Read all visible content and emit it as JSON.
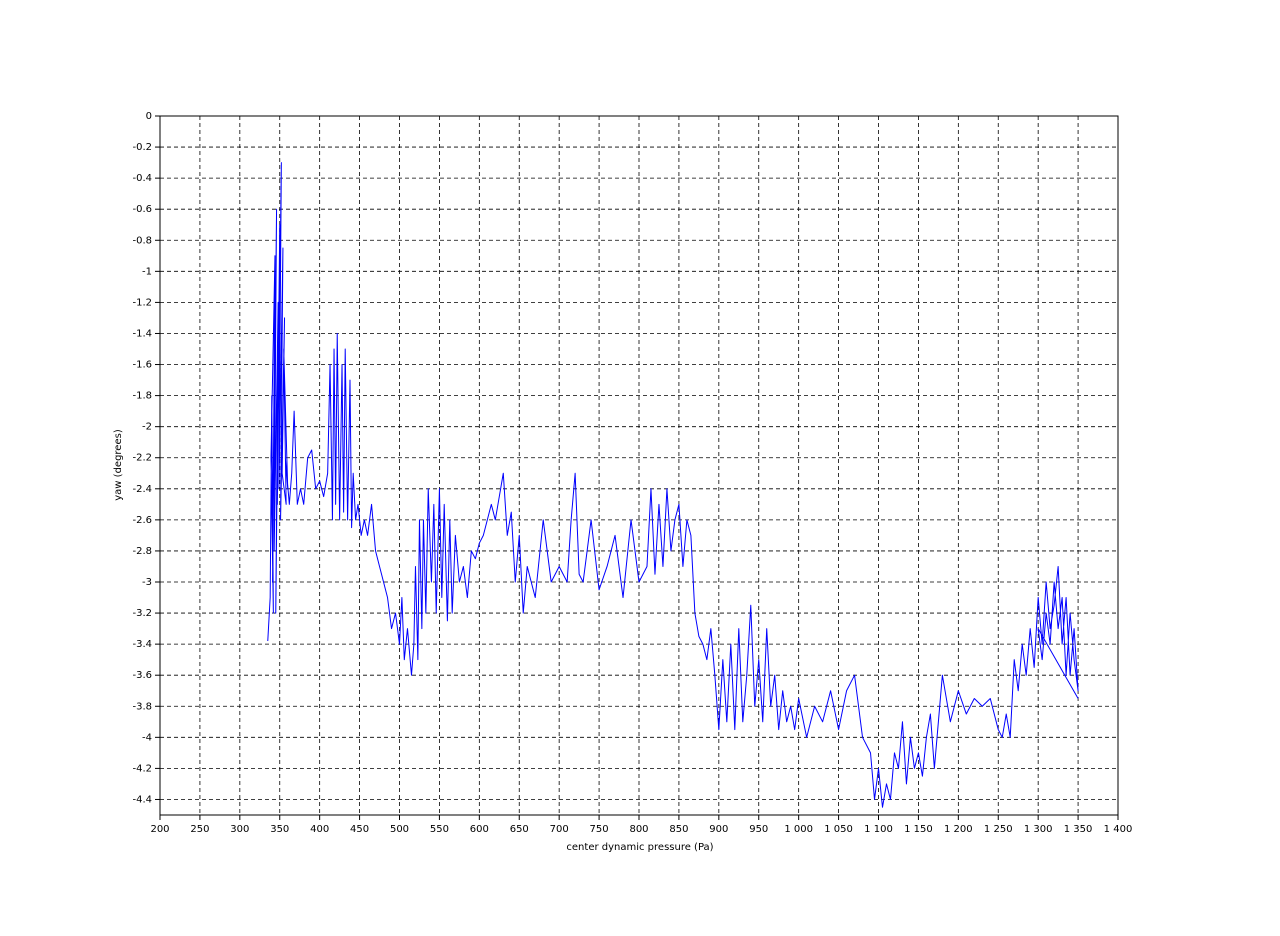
{
  "chart_data": {
    "type": "line",
    "xlabel": "center dynamic pressure (Pa)",
    "ylabel": "yaw (degrees)",
    "color": "#0000ff",
    "grid": true,
    "xlim": [
      200,
      1400
    ],
    "ylim": [
      -4.5,
      0
    ],
    "xticks": [
      200,
      250,
      300,
      350,
      400,
      450,
      500,
      550,
      600,
      650,
      700,
      750,
      800,
      850,
      900,
      950,
      {
        "value": 1000,
        "label": "1 000"
      },
      {
        "value": 1050,
        "label": "1 050"
      },
      {
        "value": 1100,
        "label": "1 100"
      },
      {
        "value": 1150,
        "label": "1 150"
      },
      {
        "value": 1200,
        "label": "1 200"
      },
      {
        "value": 1250,
        "label": "1 250"
      },
      {
        "value": 1300,
        "label": "1 300"
      },
      {
        "value": 1350,
        "label": "1 350"
      },
      {
        "value": 1400,
        "label": "1 400"
      }
    ],
    "yticks": [
      0,
      -0.2,
      -0.4,
      -0.6,
      -0.8,
      -1,
      -1.2,
      -1.4,
      -1.6,
      -1.8,
      -2,
      -2.2,
      -2.4,
      -2.6,
      -2.8,
      -3,
      -3.2,
      -3.4,
      -3.6,
      -3.8,
      -4,
      -4.2,
      -4.4
    ],
    "x": [
      335,
      338,
      340,
      342,
      339,
      344,
      341,
      346,
      343,
      348,
      345,
      350,
      347,
      352,
      349,
      354,
      351,
      356,
      353,
      358,
      355,
      360,
      357,
      362,
      365,
      368,
      372,
      376,
      380,
      385,
      390,
      395,
      400,
      405,
      410,
      413,
      416,
      418,
      420,
      422,
      425,
      428,
      430,
      432,
      435,
      438,
      440,
      442,
      445,
      448,
      452,
      456,
      460,
      465,
      470,
      475,
      480,
      485,
      490,
      495,
      500,
      503,
      506,
      510,
      515,
      518,
      520,
      523,
      525,
      528,
      530,
      533,
      536,
      540,
      543,
      546,
      550,
      553,
      556,
      560,
      563,
      566,
      570,
      575,
      580,
      585,
      590,
      595,
      600,
      605,
      610,
      615,
      620,
      625,
      630,
      635,
      640,
      645,
      650,
      655,
      660,
      670,
      680,
      690,
      700,
      710,
      715,
      720,
      725,
      730,
      740,
      750,
      760,
      770,
      780,
      790,
      800,
      810,
      815,
      820,
      825,
      830,
      835,
      840,
      845,
      850,
      855,
      860,
      865,
      870,
      875,
      880,
      885,
      890,
      895,
      900,
      905,
      910,
      915,
      920,
      925,
      930,
      935,
      940,
      945,
      950,
      955,
      960,
      965,
      970,
      975,
      980,
      985,
      990,
      995,
      1000,
      1010,
      1020,
      1030,
      1040,
      1050,
      1060,
      1070,
      1080,
      1090,
      1095,
      1100,
      1105,
      1110,
      1115,
      1120,
      1125,
      1130,
      1135,
      1140,
      1145,
      1150,
      1155,
      1160,
      1165,
      1170,
      1175,
      1180,
      1190,
      1200,
      1210,
      1220,
      1230,
      1240,
      1250,
      1255,
      1260,
      1265,
      1270,
      1275,
      1280,
      1285,
      1290,
      1295,
      1300,
      1305,
      1310,
      1315,
      1320,
      1325,
      1330,
      1335,
      1340,
      1345,
      1350,
      1345,
      1340,
      1335,
      1330,
      1325,
      1320,
      1315,
      1310,
      1305,
      1300,
      1350
    ],
    "values": [
      -3.38,
      -3.1,
      -1.8,
      -3.2,
      -2.2,
      -0.9,
      -3.0,
      -0.6,
      -2.8,
      -1.2,
      -3.2,
      -0.7,
      -2.5,
      -0.3,
      -2.4,
      -0.85,
      -2.6,
      -1.3,
      -2.3,
      -2.5,
      -1.5,
      -2.4,
      -2.2,
      -2.5,
      -2.3,
      -1.9,
      -2.5,
      -2.4,
      -2.5,
      -2.2,
      -2.15,
      -2.4,
      -2.35,
      -2.45,
      -2.3,
      -1.6,
      -2.6,
      -1.5,
      -2.5,
      -1.4,
      -2.6,
      -1.6,
      -2.55,
      -1.5,
      -2.6,
      -1.7,
      -2.65,
      -2.3,
      -2.6,
      -2.5,
      -2.7,
      -2.6,
      -2.7,
      -2.5,
      -2.8,
      -2.9,
      -3.0,
      -3.1,
      -3.3,
      -3.2,
      -3.4,
      -3.1,
      -3.5,
      -3.3,
      -3.6,
      -3.4,
      -2.9,
      -3.5,
      -2.6,
      -3.3,
      -2.6,
      -3.2,
      -2.4,
      -3.0,
      -2.5,
      -3.2,
      -2.4,
      -3.1,
      -2.5,
      -3.25,
      -2.6,
      -3.2,
      -2.7,
      -3.0,
      -2.9,
      -3.1,
      -2.8,
      -2.85,
      -2.75,
      -2.7,
      -2.6,
      -2.5,
      -2.6,
      -2.45,
      -2.3,
      -2.7,
      -2.55,
      -3.0,
      -2.7,
      -3.2,
      -2.9,
      -3.1,
      -2.6,
      -3.0,
      -2.9,
      -3.0,
      -2.6,
      -2.3,
      -2.95,
      -3.0,
      -2.6,
      -3.05,
      -2.9,
      -2.7,
      -3.1,
      -2.6,
      -3.0,
      -2.9,
      -2.4,
      -2.95,
      -2.5,
      -2.9,
      -2.4,
      -2.8,
      -2.6,
      -2.5,
      -2.9,
      -2.6,
      -2.7,
      -3.2,
      -3.35,
      -3.4,
      -3.5,
      -3.3,
      -3.6,
      -3.95,
      -3.5,
      -3.9,
      -3.4,
      -3.95,
      -3.3,
      -3.9,
      -3.6,
      -3.15,
      -3.8,
      -3.5,
      -3.9,
      -3.3,
      -3.8,
      -3.6,
      -3.95,
      -3.7,
      -3.9,
      -3.8,
      -3.95,
      -3.75,
      -4.0,
      -3.8,
      -3.9,
      -3.7,
      -3.95,
      -3.7,
      -3.6,
      -4.0,
      -4.1,
      -4.4,
      -4.2,
      -4.45,
      -4.3,
      -4.4,
      -4.1,
      -4.2,
      -3.9,
      -4.3,
      -4.0,
      -4.2,
      -4.1,
      -4.25,
      -4.0,
      -3.85,
      -4.2,
      -3.9,
      -3.6,
      -3.9,
      -3.7,
      -3.85,
      -3.75,
      -3.8,
      -3.75,
      -3.95,
      -4.0,
      -3.85,
      -4.0,
      -3.5,
      -3.7,
      -3.4,
      -3.6,
      -3.3,
      -3.55,
      -3.1,
      -3.4,
      -3.0,
      -3.3,
      -3.15,
      -2.9,
      -3.4,
      -3.1,
      -3.6,
      -3.3,
      -3.7,
      -3.5,
      -3.2,
      -3.6,
      -3.1,
      -3.3,
      -3.0,
      -3.4,
      -3.2,
      -3.5,
      -3.3,
      -3.75
    ]
  }
}
